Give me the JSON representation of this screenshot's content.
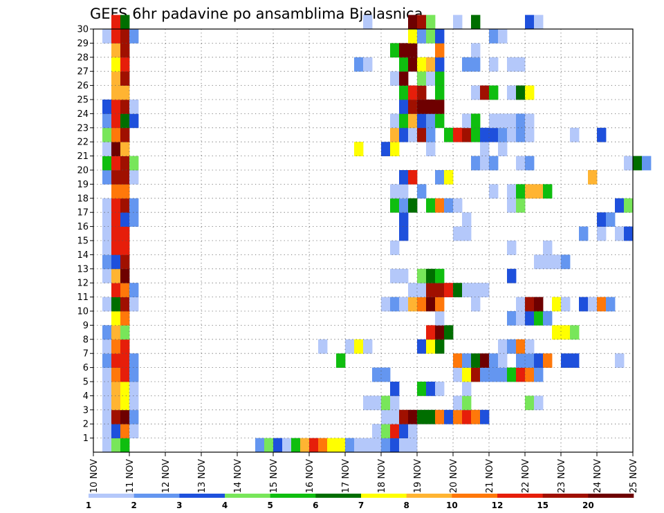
{
  "chart_data": {
    "type": "heatmap",
    "title": "GEFS 6hr padavine po ansamblima Bjelasnica",
    "xlabel": "",
    "ylabel": "",
    "x_start": "10 NOV",
    "x_end": "25 NOV",
    "x_ticks": [
      "10 NOV",
      "11 NOV",
      "12 NOV",
      "13 NOV",
      "14 NOV",
      "15 NOV",
      "16 NOV",
      "17 NOV",
      "18 NOV",
      "19 NOV",
      "20 NOV",
      "21 NOV",
      "22 NOV",
      "23 NOV",
      "24 NOV",
      "25 NOV"
    ],
    "y_ticks": [
      1,
      2,
      3,
      4,
      5,
      6,
      7,
      8,
      9,
      10,
      11,
      12,
      13,
      14,
      15,
      16,
      17,
      18,
      19,
      20,
      21,
      22,
      23,
      24,
      25,
      26,
      27,
      28,
      29,
      30
    ],
    "ylim": [
      0,
      30
    ],
    "grid": true,
    "steps_per_day": 4,
    "legend": {
      "placement": "bottom",
      "boundaries": [
        "1",
        "2",
        "3",
        "4",
        "5",
        "6",
        "7",
        "8",
        "10",
        "12",
        "15",
        "20"
      ],
      "colors": [
        "#b4c8fa",
        "#6496f0",
        "#1e50dc",
        "#78e65a",
        "#0fbe0f",
        "#006e00",
        "#ffff00",
        "#ffb432",
        "#ff780a",
        "#e61e0a",
        "#a01000",
        "#6e0000"
      ]
    },
    "member_cells": {
      "0": [
        [
          1,
          1
        ],
        [
          2,
          4
        ],
        [
          3,
          5
        ],
        [
          18,
          2
        ],
        [
          19,
          4
        ],
        [
          20,
          3
        ],
        [
          21,
          1
        ],
        [
          22,
          5
        ],
        [
          23,
          8
        ],
        [
          24,
          10
        ],
        [
          25,
          9
        ],
        [
          26,
          7
        ],
        [
          27,
          7
        ],
        [
          28,
          2
        ],
        [
          29,
          1
        ],
        [
          30,
          1
        ],
        [
          31,
          1
        ],
        [
          32,
          2
        ],
        [
          33,
          3
        ],
        [
          34,
          1
        ],
        [
          35,
          1
        ]
      ],
      "1": [
        [
          1,
          1
        ],
        [
          2,
          3
        ],
        [
          3,
          9
        ],
        [
          4,
          1
        ],
        [
          31,
          1
        ],
        [
          32,
          4
        ],
        [
          33,
          10
        ],
        [
          34,
          3
        ],
        [
          35,
          1
        ]
      ],
      "2": [
        [
          1,
          1
        ],
        [
          2,
          11
        ],
        [
          3,
          12
        ],
        [
          4,
          2
        ],
        [
          32,
          1
        ],
        [
          33,
          1
        ],
        [
          34,
          11
        ],
        [
          35,
          12
        ],
        [
          36,
          6
        ],
        [
          37,
          6
        ],
        [
          38,
          9
        ],
        [
          39,
          3
        ],
        [
          40,
          9
        ],
        [
          41,
          10
        ],
        [
          42,
          9
        ],
        [
          43,
          3
        ]
      ],
      "3": [
        [
          1,
          1
        ],
        [
          2,
          8
        ],
        [
          3,
          7
        ],
        [
          4,
          1
        ],
        [
          30,
          1
        ],
        [
          31,
          1
        ],
        [
          32,
          4
        ],
        [
          33,
          1
        ],
        [
          40,
          1
        ],
        [
          41,
          4
        ],
        [
          48,
          4
        ],
        [
          49,
          1
        ]
      ],
      "4": [
        [
          1,
          1
        ],
        [
          2,
          8
        ],
        [
          3,
          7
        ],
        [
          4,
          1
        ],
        [
          33,
          3
        ],
        [
          36,
          5
        ],
        [
          37,
          3
        ],
        [
          38,
          1
        ],
        [
          41,
          1
        ]
      ],
      "5": [
        [
          1,
          1
        ],
        [
          2,
          9
        ],
        [
          3,
          10
        ],
        [
          4,
          2
        ],
        [
          31,
          2
        ],
        [
          32,
          2
        ],
        [
          40,
          1
        ],
        [
          41,
          7
        ],
        [
          42,
          11
        ],
        [
          43,
          2
        ],
        [
          44,
          2
        ],
        [
          45,
          2
        ],
        [
          46,
          5
        ],
        [
          47,
          10
        ],
        [
          48,
          9
        ],
        [
          49,
          2
        ]
      ],
      "6": [
        [
          1,
          2
        ],
        [
          2,
          10
        ],
        [
          3,
          10
        ],
        [
          4,
          2
        ],
        [
          27,
          5
        ],
        [
          40,
          9
        ],
        [
          41,
          2
        ],
        [
          42,
          6
        ],
        [
          43,
          12
        ],
        [
          44,
          2
        ],
        [
          45,
          1
        ],
        [
          47,
          2
        ],
        [
          48,
          2
        ],
        [
          49,
          3
        ],
        [
          50,
          9
        ],
        [
          52,
          3
        ],
        [
          53,
          3
        ],
        [
          58,
          1
        ]
      ],
      "7": [
        [
          1,
          1
        ],
        [
          2,
          9
        ],
        [
          3,
          10
        ],
        [
          25,
          1
        ],
        [
          28,
          1
        ],
        [
          29,
          7
        ],
        [
          30,
          1
        ],
        [
          36,
          3
        ],
        [
          37,
          7
        ],
        [
          38,
          6
        ],
        [
          45,
          1
        ],
        [
          46,
          2
        ],
        [
          47,
          9
        ],
        [
          48,
          1
        ]
      ],
      "8": [
        [
          1,
          2
        ],
        [
          2,
          8
        ],
        [
          3,
          4
        ],
        [
          37,
          10
        ],
        [
          38,
          12
        ],
        [
          39,
          6
        ],
        [
          51,
          7
        ],
        [
          52,
          7
        ],
        [
          53,
          4
        ]
      ],
      "9": [
        [
          2,
          7
        ],
        [
          3,
          9
        ],
        [
          38,
          1
        ],
        [
          46,
          2
        ],
        [
          47,
          1
        ],
        [
          48,
          3
        ],
        [
          49,
          5
        ],
        [
          50,
          2
        ]
      ],
      "10": [
        [
          1,
          1
        ],
        [
          2,
          6
        ],
        [
          3,
          11
        ],
        [
          4,
          1
        ],
        [
          32,
          1
        ],
        [
          33,
          2
        ],
        [
          34,
          1
        ],
        [
          35,
          8
        ],
        [
          36,
          9
        ],
        [
          37,
          12
        ],
        [
          38,
          9
        ],
        [
          42,
          1
        ],
        [
          47,
          1
        ],
        [
          48,
          11
        ],
        [
          49,
          12
        ],
        [
          51,
          7
        ],
        [
          52,
          1
        ],
        [
          54,
          3
        ],
        [
          55,
          1
        ],
        [
          56,
          9
        ],
        [
          57,
          2
        ]
      ],
      "11": [
        [
          2,
          10
        ],
        [
          3,
          9
        ],
        [
          4,
          2
        ],
        [
          35,
          1
        ],
        [
          36,
          1
        ],
        [
          37,
          11
        ],
        [
          38,
          11
        ],
        [
          39,
          10
        ],
        [
          40,
          6
        ],
        [
          41,
          1
        ],
        [
          42,
          1
        ],
        [
          43,
          1
        ]
      ],
      "12": [
        [
          1,
          1
        ],
        [
          2,
          8
        ],
        [
          3,
          12
        ],
        [
          33,
          1
        ],
        [
          34,
          1
        ],
        [
          36,
          4
        ],
        [
          37,
          6
        ],
        [
          38,
          5
        ],
        [
          46,
          3
        ]
      ],
      "13": [
        [
          1,
          2
        ],
        [
          2,
          3
        ],
        [
          3,
          11
        ],
        [
          49,
          1
        ],
        [
          50,
          1
        ],
        [
          51,
          1
        ],
        [
          52,
          2
        ]
      ],
      "14": [
        [
          1,
          1
        ],
        [
          2,
          10
        ],
        [
          3,
          10
        ],
        [
          33,
          1
        ],
        [
          46,
          1
        ],
        [
          50,
          1
        ]
      ],
      "15": [
        [
          1,
          1
        ],
        [
          2,
          10
        ],
        [
          3,
          10
        ],
        [
          34,
          3
        ],
        [
          40,
          1
        ],
        [
          41,
          1
        ],
        [
          54,
          2
        ],
        [
          56,
          1
        ],
        [
          58,
          1
        ],
        [
          59,
          3
        ]
      ],
      "16": [
        [
          1,
          1
        ],
        [
          2,
          10
        ],
        [
          3,
          3
        ],
        [
          4,
          2
        ],
        [
          34,
          3
        ],
        [
          41,
          1
        ],
        [
          56,
          3
        ],
        [
          57,
          2
        ]
      ],
      "17": [
        [
          1,
          1
        ],
        [
          2,
          10
        ],
        [
          3,
          11
        ],
        [
          4,
          2
        ],
        [
          33,
          5
        ],
        [
          34,
          2
        ],
        [
          35,
          6
        ],
        [
          37,
          5
        ],
        [
          38,
          9
        ],
        [
          39,
          2
        ],
        [
          40,
          1
        ],
        [
          46,
          1
        ],
        [
          47,
          4
        ],
        [
          58,
          3
        ],
        [
          59,
          4
        ]
      ],
      "18": [
        [
          2,
          9
        ],
        [
          3,
          9
        ],
        [
          33,
          1
        ],
        [
          34,
          1
        ],
        [
          36,
          2
        ],
        [
          44,
          1
        ],
        [
          46,
          1
        ],
        [
          47,
          5
        ],
        [
          48,
          8
        ],
        [
          49,
          8
        ],
        [
          50,
          5
        ]
      ],
      "19": [
        [
          1,
          2
        ],
        [
          2,
          11
        ],
        [
          3,
          11
        ],
        [
          4,
          1
        ],
        [
          34,
          3
        ],
        [
          35,
          10
        ],
        [
          38,
          2
        ],
        [
          39,
          7
        ],
        [
          55,
          8
        ]
      ],
      "20": [
        [
          1,
          5
        ],
        [
          2,
          10
        ],
        [
          3,
          11
        ],
        [
          4,
          4
        ],
        [
          42,
          2
        ],
        [
          43,
          1
        ],
        [
          44,
          2
        ],
        [
          47,
          1
        ],
        [
          48,
          2
        ],
        [
          59,
          1
        ],
        [
          60,
          6
        ],
        [
          61,
          2
        ]
      ],
      "21": [
        [
          1,
          1
        ],
        [
          2,
          12
        ],
        [
          3,
          8
        ],
        [
          29,
          7
        ],
        [
          32,
          3
        ],
        [
          33,
          7
        ],
        [
          37,
          1
        ],
        [
          43,
          1
        ],
        [
          45,
          1
        ]
      ],
      "22": [
        [
          1,
          4
        ],
        [
          2,
          9
        ],
        [
          3,
          11
        ],
        [
          33,
          8
        ],
        [
          34,
          3
        ],
        [
          35,
          1
        ],
        [
          36,
          11
        ],
        [
          37,
          2
        ],
        [
          39,
          5
        ],
        [
          40,
          10
        ],
        [
          41,
          11
        ],
        [
          42,
          5
        ],
        [
          43,
          3
        ],
        [
          44,
          3
        ],
        [
          45,
          2
        ],
        [
          46,
          1
        ],
        [
          47,
          2
        ],
        [
          48,
          1
        ],
        [
          53,
          1
        ],
        [
          56,
          3
        ]
      ],
      "23": [
        [
          1,
          2
        ],
        [
          2,
          10
        ],
        [
          3,
          6
        ],
        [
          4,
          3
        ],
        [
          33,
          1
        ],
        [
          34,
          5
        ],
        [
          35,
          8
        ],
        [
          36,
          3
        ],
        [
          37,
          2
        ],
        [
          38,
          5
        ],
        [
          41,
          1
        ],
        [
          42,
          5
        ],
        [
          44,
          1
        ],
        [
          45,
          1
        ],
        [
          46,
          1
        ],
        [
          47,
          2
        ],
        [
          48,
          1
        ]
      ],
      "24": [
        [
          1,
          3
        ],
        [
          2,
          10
        ],
        [
          3,
          11
        ],
        [
          4,
          1
        ],
        [
          34,
          3
        ],
        [
          35,
          11
        ],
        [
          36,
          12
        ],
        [
          37,
          12
        ],
        [
          38,
          12
        ]
      ],
      "25": [
        [
          2,
          8
        ],
        [
          3,
          8
        ],
        [
          34,
          5
        ],
        [
          35,
          10
        ],
        [
          36,
          11
        ],
        [
          38,
          5
        ],
        [
          42,
          1
        ],
        [
          43,
          11
        ],
        [
          44,
          5
        ],
        [
          46,
          1
        ],
        [
          47,
          6
        ],
        [
          48,
          7
        ]
      ],
      "26": [
        [
          2,
          8
        ],
        [
          3,
          11
        ],
        [
          33,
          1
        ],
        [
          34,
          12
        ],
        [
          36,
          4
        ],
        [
          37,
          1
        ],
        [
          38,
          5
        ]
      ],
      "27": [
        [
          2,
          7
        ],
        [
          3,
          10
        ],
        [
          29,
          2
        ],
        [
          30,
          1
        ],
        [
          34,
          5
        ],
        [
          35,
          12
        ],
        [
          36,
          7
        ],
        [
          37,
          8
        ],
        [
          38,
          3
        ],
        [
          41,
          2
        ],
        [
          42,
          2
        ],
        [
          44,
          1
        ],
        [
          46,
          1
        ],
        [
          47,
          1
        ]
      ],
      "28": [
        [
          2,
          8
        ],
        [
          3,
          11
        ],
        [
          33,
          5
        ],
        [
          34,
          12
        ],
        [
          35,
          12
        ],
        [
          38,
          9
        ],
        [
          42,
          1
        ]
      ],
      "29": [
        [
          1,
          1
        ],
        [
          2,
          10
        ],
        [
          3,
          11
        ],
        [
          4,
          2
        ],
        [
          35,
          7
        ],
        [
          36,
          2
        ],
        [
          37,
          4
        ],
        [
          38,
          3
        ],
        [
          44,
          2
        ],
        [
          45,
          1
        ]
      ],
      "30": [
        [
          2,
          10
        ],
        [
          3,
          6
        ],
        [
          30,
          1
        ],
        [
          35,
          12
        ],
        [
          36,
          11
        ],
        [
          37,
          4
        ],
        [
          40,
          1
        ],
        [
          42,
          6
        ],
        [
          48,
          3
        ],
        [
          49,
          1
        ]
      ]
    }
  }
}
